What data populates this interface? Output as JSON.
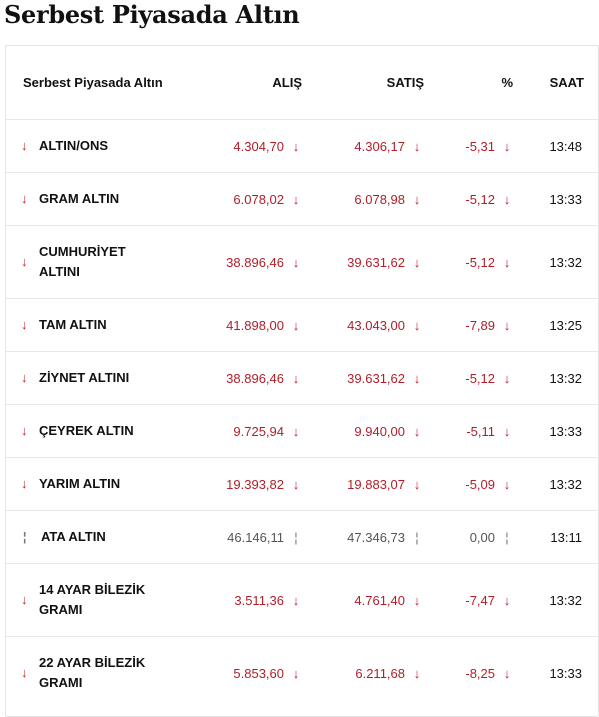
{
  "title": "Serbest Piyasada Altın",
  "table": {
    "headers": {
      "name": "Serbest Piyasada Altın",
      "alis": "ALIŞ",
      "satis": "SATIŞ",
      "pct": "%",
      "saat": "SAAT"
    },
    "rows": [
      {
        "name": "ALTIN/ONS",
        "alis": "4.304,70",
        "satis": "4.306,17",
        "pct": "-5,31",
        "saat": "13:48",
        "trend": "down",
        "arrow": "↓"
      },
      {
        "name": "GRAM ALTIN",
        "alis": "6.078,02",
        "satis": "6.078,98",
        "pct": "-5,12",
        "saat": "13:33",
        "trend": "down",
        "arrow": "↓"
      },
      {
        "name": "CUMHURİYET ALTINI",
        "alis": "38.896,46",
        "satis": "39.631,62",
        "pct": "-5,12",
        "saat": "13:32",
        "trend": "down",
        "arrow": "↓"
      },
      {
        "name": "TAM ALTIN",
        "alis": "41.898,00",
        "satis": "43.043,00",
        "pct": "-7,89",
        "saat": "13:25",
        "trend": "down",
        "arrow": "↓"
      },
      {
        "name": "ZİYNET ALTINI",
        "alis": "38.896,46",
        "satis": "39.631,62",
        "pct": "-5,12",
        "saat": "13:32",
        "trend": "down",
        "arrow": "↓"
      },
      {
        "name": "ÇEYREK ALTIN",
        "alis": "9.725,94",
        "satis": "9.940,00",
        "pct": "-5,11",
        "saat": "13:33",
        "trend": "down",
        "arrow": "↓"
      },
      {
        "name": "YARIM ALTIN",
        "alis": "19.393,82",
        "satis": "19.883,07",
        "pct": "-5,09",
        "saat": "13:32",
        "trend": "down",
        "arrow": "↓"
      },
      {
        "name": "ATA ALTIN",
        "alis": "46.146,11",
        "satis": "47.346,73",
        "pct": "0,00",
        "saat": "13:11",
        "trend": "neutral",
        "arrow": "¦"
      },
      {
        "name": "14 AYAR BİLEZİK GRAMI",
        "alis": "3.511,36",
        "satis": "4.761,40",
        "pct": "-7,47",
        "saat": "13:32",
        "trend": "down",
        "arrow": "↓"
      },
      {
        "name": "22 AYAR BİLEZİK GRAMI",
        "alis": "5.853,60",
        "satis": "6.211,68",
        "pct": "-8,25",
        "saat": "13:33",
        "trend": "down",
        "arrow": "↓"
      }
    ]
  },
  "colors": {
    "down": "#c0202e",
    "neutral": "#777777",
    "value_down": "#b01e2a"
  },
  "icons": {
    "down": "arrow-down-icon",
    "neutral": "dash-icon"
  }
}
